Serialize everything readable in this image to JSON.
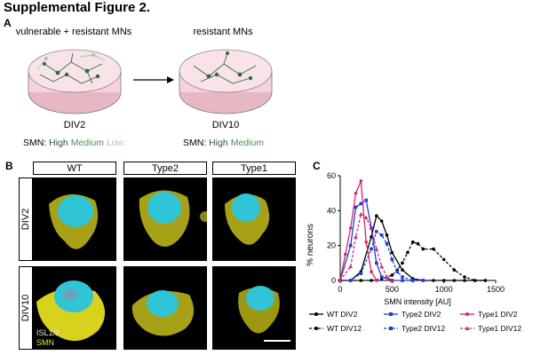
{
  "figure": {
    "title": "Supplemental Figure 2."
  },
  "panel_a": {
    "letter": "A",
    "dish1": {
      "top_label": "vulnerable + resistant MNs",
      "bottom_label": "DIV2",
      "smn_prefix": "SMN:",
      "smn_high": "High",
      "smn_medium": "Medium",
      "smn_low": "Low"
    },
    "dish2": {
      "top_label": "resistant MNs",
      "bottom_label": "DIV10",
      "smn_prefix": "SMN:",
      "smn_high": "High",
      "smn_medium": "Medium"
    },
    "colors": {
      "dish_fill": "#f4d3dc",
      "neuron": "#2f6b3a",
      "neuron_faint": "#9ccf9c"
    }
  },
  "panel_b": {
    "letter": "B",
    "columns": [
      "WT",
      "Type2",
      "Type1"
    ],
    "rows": [
      "DIV2",
      "DIV10"
    ],
    "stain_label_1": "ISL1/2",
    "stain_label_2": "SMN",
    "colors": {
      "nucleus": "#2fc4d6",
      "soma": "#c8c21a",
      "background": "#000000"
    }
  },
  "panel_c": {
    "letter": "C"
  },
  "chart_data": {
    "type": "line",
    "title": "",
    "xlabel": "SMN intensity [AU]",
    "ylabel": "% neurons",
    "xlim": [
      0,
      1500
    ],
    "ylim": [
      0,
      60
    ],
    "xticks": [
      0,
      500,
      1000,
      1500
    ],
    "yticks": [
      0,
      20,
      40,
      60
    ],
    "grid": false,
    "legend_position": "bottom",
    "series": [
      {
        "name": "WT DIV2",
        "color": "#000000",
        "dash": "solid",
        "marker": "circle",
        "x": [
          0,
          100,
          200,
          300,
          350,
          400,
          450,
          500,
          600,
          700,
          800,
          900,
          1000,
          1100,
          1200,
          1300,
          1400
        ],
        "y": [
          0,
          0,
          5,
          25,
          37,
          34,
          26,
          16,
          6,
          1,
          0,
          0,
          0,
          0,
          0,
          0,
          0
        ]
      },
      {
        "name": "WT DIV12",
        "color": "#000000",
        "dash": "dashed",
        "marker": "circle",
        "x": [
          0,
          100,
          200,
          300,
          400,
          500,
          550,
          600,
          650,
          700,
          750,
          800,
          900,
          1000,
          1100,
          1200,
          1300,
          1400
        ],
        "y": [
          0,
          0,
          0,
          0,
          1,
          3,
          6,
          10,
          16,
          22,
          21,
          18,
          18,
          12,
          6,
          2,
          0,
          0
        ]
      },
      {
        "name": "Type2 DIV2",
        "color": "#1f3fd1",
        "dash": "solid",
        "marker": "square",
        "x": [
          0,
          100,
          150,
          200,
          250,
          300,
          350,
          400,
          500,
          600,
          700
        ],
        "y": [
          0,
          20,
          42,
          44,
          46,
          30,
          10,
          2,
          0,
          0,
          0
        ]
      },
      {
        "name": "Type2 DIV12",
        "color": "#1f3fd1",
        "dash": "dashed",
        "marker": "square",
        "x": [
          0,
          100,
          200,
          300,
          350,
          400,
          450,
          500,
          550,
          600,
          700,
          800
        ],
        "y": [
          0,
          0,
          4,
          18,
          28,
          26,
          21,
          12,
          5,
          2,
          0,
          0
        ]
      },
      {
        "name": "Type1 DIV2",
        "color": "#d6246e",
        "dash": "solid",
        "marker": "circle",
        "x": [
          0,
          50,
          100,
          150,
          200,
          250,
          300,
          350
        ],
        "y": [
          0,
          15,
          30,
          50,
          57,
          22,
          5,
          0
        ]
      },
      {
        "name": "Type1 DIV12",
        "color": "#d6246e",
        "dash": "dashed",
        "marker": "triangle",
        "x": [
          0,
          100,
          150,
          200,
          250,
          300,
          350,
          400,
          450,
          500
        ],
        "y": [
          0,
          8,
          25,
          38,
          36,
          30,
          18,
          8,
          2,
          0
        ]
      }
    ]
  }
}
